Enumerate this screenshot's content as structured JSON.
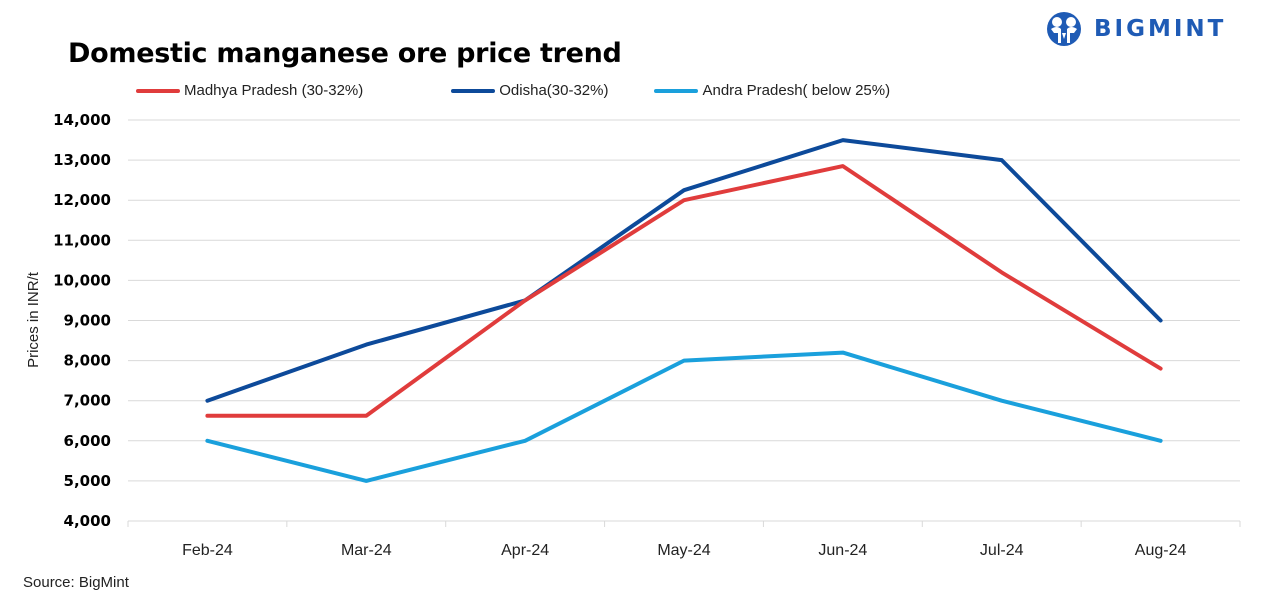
{
  "brand": {
    "name": "BIGMINT",
    "color": "#1f5bb5"
  },
  "chart_data": {
    "type": "line",
    "title": "Domestic manganese ore price trend",
    "xlabel": "",
    "ylabel": "Prices in INR/t",
    "categories": [
      "Feb-24",
      "Mar-24",
      "Apr-24",
      "May-24",
      "Jun-24",
      "Jul-24",
      "Aug-24"
    ],
    "ylim": [
      4000,
      14000
    ],
    "yticks": [
      4000,
      5000,
      6000,
      7000,
      8000,
      9000,
      10000,
      11000,
      12000,
      13000,
      14000
    ],
    "ytick_labels": [
      "4,000",
      "5,000",
      "6,000",
      "7,000",
      "8,000",
      "9,000",
      "10,000",
      "11,000",
      "12,000",
      "13,000",
      "14,000"
    ],
    "grid": true,
    "legend_position": "top",
    "series": [
      {
        "name": "Madhya Pradesh (30-32%)",
        "color": "#e03c3c",
        "values": [
          6625,
          6625,
          9500,
          12000,
          12850,
          10200,
          7800
        ]
      },
      {
        "name": "Odisha(30-32%)",
        "color": "#0d4a9a",
        "values": [
          7000,
          8400,
          9500,
          12250,
          13500,
          13000,
          9000
        ]
      },
      {
        "name": "Andra Pradesh( below 25%)",
        "color": "#1aa0dc",
        "values": [
          6000,
          5000,
          6000,
          8000,
          8200,
          7000,
          6000
        ]
      }
    ],
    "source": "Source: BigMint"
  }
}
